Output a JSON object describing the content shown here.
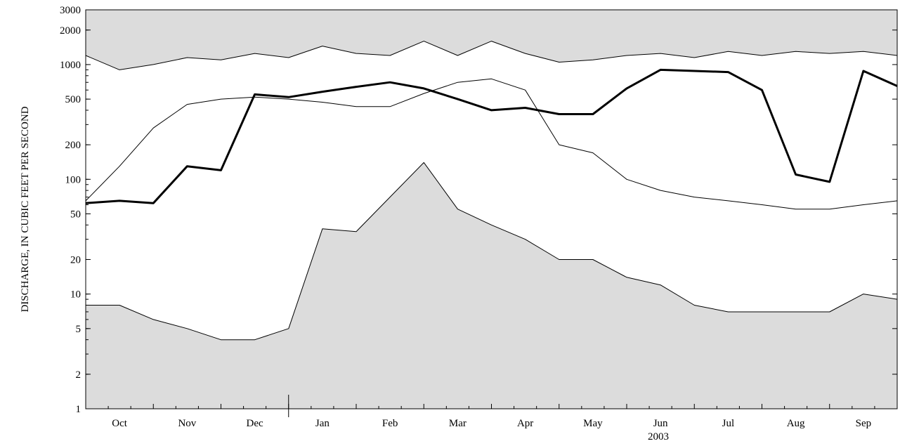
{
  "chart_data": {
    "type": "line",
    "title": "",
    "xlabel": "2003",
    "ylabel": "DISCHARGE, IN CUBIC FEET PER SECOND",
    "yscale": "log",
    "ylim": [
      1,
      3000
    ],
    "grid": false,
    "legend": "none",
    "y_ticks": [
      {
        "value": 1,
        "label": "1"
      },
      {
        "value": 2,
        "label": "2"
      },
      {
        "value": 5,
        "label": "5"
      },
      {
        "value": 10,
        "label": "10"
      },
      {
        "value": 20,
        "label": "20"
      },
      {
        "value": 50,
        "label": "50"
      },
      {
        "value": 100,
        "label": "100"
      },
      {
        "value": 200,
        "label": "200"
      },
      {
        "value": 500,
        "label": "500"
      },
      {
        "value": 1000,
        "label": "1000"
      },
      {
        "value": 2000,
        "label": "2000"
      },
      {
        "value": 3000,
        "label": "3000"
      }
    ],
    "x_month_labels": [
      "Oct",
      "Nov",
      "Dec",
      "Jan",
      "Feb",
      "Mar",
      "Apr",
      "May",
      "Jun",
      "Jul",
      "Aug",
      "Sep"
    ],
    "year_boundary_after": "Dec",
    "colors": {
      "band_fill": "#dcdcdc",
      "line": "#000000",
      "background": "#ffffff"
    },
    "x": [
      "Oct 1",
      "Oct 15",
      "Nov 1",
      "Nov 15",
      "Dec 1",
      "Dec 15",
      "Jan 1",
      "Jan 15",
      "Feb 1",
      "Feb 15",
      "Mar 1",
      "Mar 15",
      "Apr 1",
      "Apr 15",
      "May 1",
      "May 15",
      "Jun 1",
      "Jun 15",
      "Jul 1",
      "Jul 15",
      "Aug 1",
      "Aug 15",
      "Sep 1",
      "Sep 15",
      "Sep 30"
    ],
    "series": [
      {
        "role": "band-max",
        "values": [
          1200,
          900,
          1000,
          1150,
          1100,
          1250,
          1150,
          1450,
          1250,
          1200,
          1600,
          1200,
          1600,
          1250,
          1050,
          1100,
          1200,
          1250,
          1150,
          1300,
          1200,
          1300,
          1250,
          1300,
          1200
        ]
      },
      {
        "role": "band-min",
        "values": [
          8,
          8,
          6,
          5,
          4,
          4,
          5,
          37,
          35,
          70,
          140,
          55,
          40,
          30,
          20,
          20,
          14,
          12,
          8,
          7,
          7,
          7,
          7,
          10,
          9
        ]
      },
      {
        "role": "mean",
        "values": [
          65,
          130,
          280,
          450,
          500,
          520,
          500,
          470,
          430,
          430,
          560,
          700,
          750,
          600,
          200,
          170,
          100,
          80,
          70,
          65,
          60,
          55,
          55,
          60,
          65
        ]
      },
      {
        "role": "current-year",
        "values": [
          62,
          65,
          62,
          130,
          120,
          550,
          520,
          580,
          640,
          700,
          620,
          500,
          400,
          420,
          370,
          370,
          620,
          900,
          880,
          860,
          600,
          110,
          95,
          880,
          650
        ]
      }
    ]
  }
}
